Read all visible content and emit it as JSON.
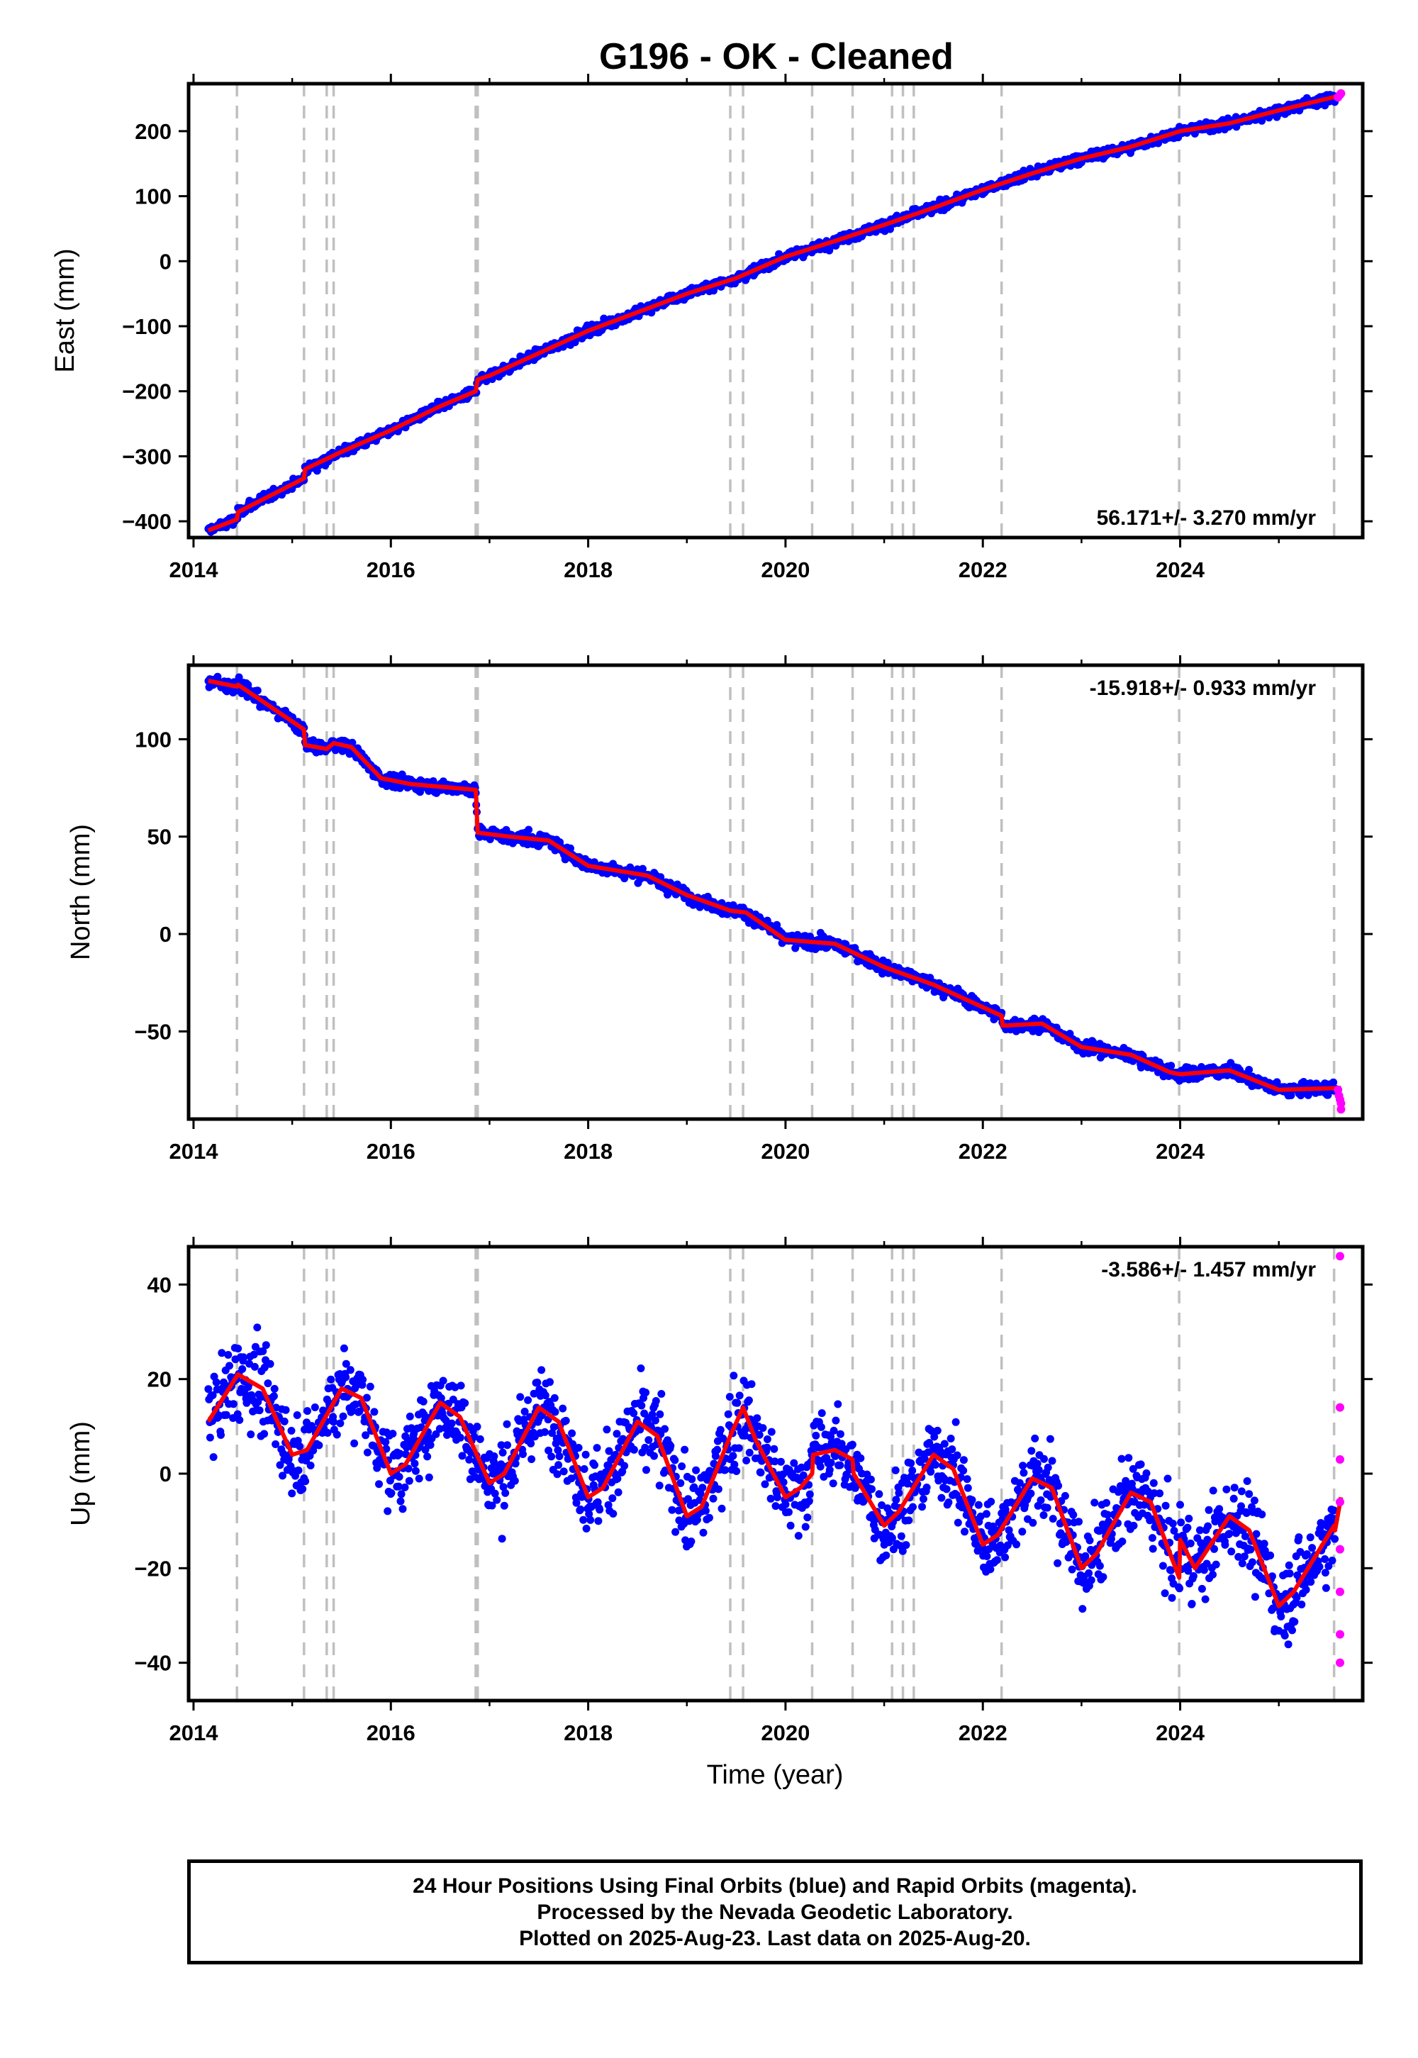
{
  "title": "G196  - OK - Cleaned",
  "xlabel": "Time (year)",
  "colors": {
    "final": "#0000ff",
    "rapid": "#ff00ff",
    "model": "#ff0000",
    "steps": "#c0c0c0"
  },
  "footer": {
    "line1": "24 Hour Positions Using Final Orbits (blue) and Rapid Orbits (magenta).",
    "line2": "Processed by the Nevada Geodetic Laboratory.",
    "line3": "Plotted on 2025-Aug-23. Last data on 2025-Aug-20."
  },
  "chart_data": [
    {
      "type": "scatter",
      "ylabel": "East (mm)",
      "rate_label": "56.171+/- 3.270 mm/yr",
      "rate_position": "bottom-right",
      "xlim": [
        2013.95,
        2025.85
      ],
      "ylim": [
        -425,
        273
      ],
      "x_ticks": [
        2014,
        2016,
        2018,
        2020,
        2022,
        2024
      ],
      "x_tick_labels": [
        "2014",
        "2016",
        "2018",
        "2020",
        "2022",
        "2024"
      ],
      "y_ticks": [
        -400,
        -300,
        -200,
        -100,
        0,
        100,
        200
      ],
      "y_tick_labels": [
        "−400",
        "−300",
        "−200",
        "−100",
        "0",
        "100",
        "200"
      ],
      "step_epochs": [
        2014.44,
        2015.12,
        2015.35,
        2015.42,
        2016.86,
        2016.88,
        2019.44,
        2019.57,
        2020.27,
        2020.68,
        2021.08,
        2021.19,
        2021.3,
        2022.19,
        2023.99,
        2025.56
      ],
      "model_x": [
        2014.15,
        2014.44,
        2014.45,
        2015.12,
        2015.13,
        2015.5,
        2016.0,
        2016.5,
        2016.86,
        2016.88,
        2017.0,
        2018.0,
        2019.0,
        2019.5,
        2020.0,
        2020.5,
        2021.0,
        2021.5,
        2022.0,
        2022.5,
        2023.0,
        2023.5,
        2024.0,
        2024.5,
        2025.0,
        2025.63
      ],
      "model_y": [
        -414,
        -397,
        -386,
        -334,
        -320,
        -293,
        -260,
        -223,
        -200,
        -182,
        -176,
        -107,
        -50,
        -26,
        7,
        31,
        56,
        82,
        110,
        135,
        158,
        176,
        200,
        212,
        232,
        255
      ],
      "scatter": 7,
      "rapid_x": [
        2025.6,
        2025.62,
        2025.63
      ],
      "rapid_y": [
        252,
        256,
        258
      ]
    },
    {
      "type": "scatter",
      "ylabel": "North (mm)",
      "rate_label": "-15.918+/- 0.933 mm/yr",
      "rate_position": "top-right",
      "xlim": [
        2013.95,
        2025.85
      ],
      "ylim": [
        -95,
        138
      ],
      "x_ticks": [
        2014,
        2016,
        2018,
        2020,
        2022,
        2024
      ],
      "x_tick_labels": [
        "2014",
        "2016",
        "2018",
        "2020",
        "2022",
        "2024"
      ],
      "y_ticks": [
        -50,
        0,
        50,
        100
      ],
      "y_tick_labels": [
        "−50",
        "0",
        "50",
        "100"
      ],
      "step_epochs": [
        2014.44,
        2015.12,
        2015.35,
        2015.42,
        2016.86,
        2016.88,
        2019.44,
        2019.57,
        2020.27,
        2020.68,
        2021.08,
        2021.19,
        2021.3,
        2022.19,
        2023.99,
        2025.56
      ],
      "model_x": [
        2014.15,
        2014.44,
        2014.45,
        2015.12,
        2015.13,
        2015.35,
        2015.42,
        2015.6,
        2015.9,
        2016.2,
        2016.86,
        2016.88,
        2017.2,
        2017.6,
        2018.0,
        2018.6,
        2019.0,
        2019.44,
        2019.6,
        2020.0,
        2020.5,
        2021.0,
        2021.5,
        2022.19,
        2022.2,
        2022.6,
        2023.0,
        2023.5,
        2023.9,
        2024.0,
        2024.5,
        2025.0,
        2025.63
      ],
      "model_y": [
        130,
        127,
        128,
        105,
        97,
        95,
        98,
        96,
        80,
        77,
        74,
        52,
        50,
        48,
        35,
        30,
        20,
        12,
        11,
        -3,
        -5,
        -17,
        -26,
        -42,
        -47,
        -46,
        -58,
        -62,
        -71,
        -72,
        -70,
        -80,
        -79
      ],
      "scatter": 3,
      "rapid_x": [
        2025.6,
        2025.61,
        2025.62,
        2025.63,
        2025.63
      ],
      "rapid_y": [
        -80,
        -83,
        -85,
        -87,
        -90
      ]
    },
    {
      "type": "scatter",
      "ylabel": "Up (mm)",
      "rate_label": "-3.586+/- 1.457 mm/yr",
      "rate_position": "top-right",
      "xlim": [
        2013.95,
        2025.85
      ],
      "ylim": [
        -48,
        48
      ],
      "x_ticks": [
        2014,
        2016,
        2018,
        2020,
        2022,
        2024
      ],
      "x_tick_labels": [
        "2014",
        "2016",
        "2018",
        "2020",
        "2022",
        "2024"
      ],
      "y_ticks": [
        -40,
        -20,
        0,
        20,
        40
      ],
      "y_tick_labels": [
        "−40",
        "−20",
        "0",
        "20",
        "40"
      ],
      "step_epochs": [
        2014.44,
        2015.12,
        2015.35,
        2015.42,
        2016.86,
        2016.88,
        2019.44,
        2019.57,
        2020.27,
        2020.68,
        2021.08,
        2021.19,
        2021.3,
        2022.19,
        2023.99,
        2025.56
      ],
      "model_x": [
        2014.15,
        2014.45,
        2014.7,
        2015.0,
        2015.15,
        2015.5,
        2015.7,
        2016.0,
        2016.15,
        2016.5,
        2016.7,
        2017.0,
        2017.15,
        2017.5,
        2017.7,
        2018.0,
        2018.15,
        2018.5,
        2018.7,
        2019.0,
        2019.15,
        2019.44,
        2019.57,
        2019.7,
        2020.0,
        2020.15,
        2020.27,
        2020.28,
        2020.5,
        2020.68,
        2020.69,
        2021.0,
        2021.15,
        2021.5,
        2021.7,
        2022.0,
        2022.15,
        2022.5,
        2022.7,
        2023.0,
        2023.15,
        2023.5,
        2023.7,
        2023.99,
        2024.0,
        2024.15,
        2024.5,
        2024.7,
        2025.0,
        2025.15,
        2025.56,
        2025.57,
        2025.63
      ],
      "model_y": [
        11,
        21,
        18,
        4,
        5,
        18,
        16,
        0,
        2,
        15,
        12,
        -2,
        0,
        14,
        11,
        -5,
        -3,
        11,
        8,
        -9,
        -7,
        8,
        14,
        7,
        -5,
        -3,
        0,
        4,
        5,
        3,
        0,
        -11,
        -8,
        4,
        1,
        -15,
        -13,
        -1,
        -3,
        -20,
        -17,
        -4,
        -6,
        -22,
        -14,
        -20,
        -9,
        -12,
        -28,
        -25,
        -11,
        -12,
        -5
      ],
      "scatter": 8,
      "rapid_x": [
        2025.62,
        2025.62,
        2025.62,
        2025.62,
        2025.62,
        2025.62,
        2025.62,
        2025.62
      ],
      "rapid_y": [
        46,
        14,
        3,
        -6,
        -16,
        -25,
        -34,
        -40
      ]
    }
  ]
}
